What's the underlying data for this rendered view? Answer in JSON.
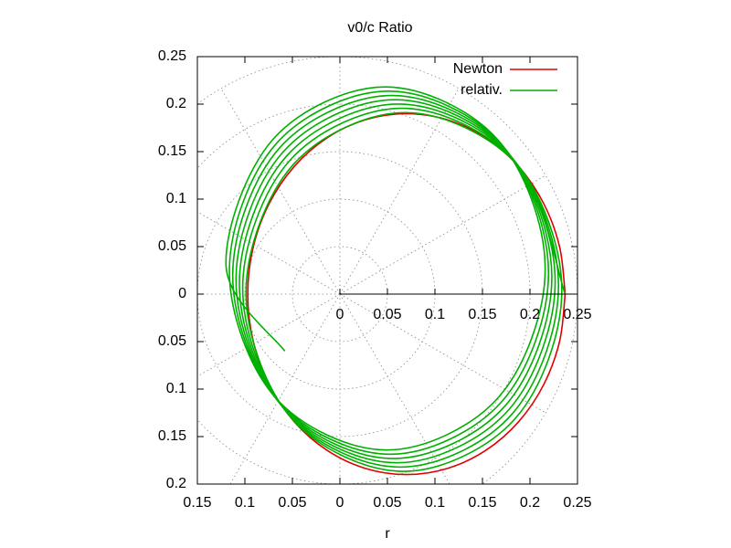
{
  "chart_data": {
    "type": "polar",
    "title": "v0/c Ratio",
    "xlabel": "r",
    "xlim": [
      -0.15,
      0.25
    ],
    "ylim": [
      -0.2,
      0.25
    ],
    "xticks": [
      {
        "value": -0.15,
        "label": "0.15"
      },
      {
        "value": -0.1,
        "label": "0.1"
      },
      {
        "value": -0.05,
        "label": "0.05"
      },
      0,
      0.05,
      0.1,
      0.15,
      0.2,
      0.25
    ],
    "yticks": [
      {
        "value": -0.2,
        "label": "0.2"
      },
      {
        "value": -0.15,
        "label": "0.15"
      },
      {
        "value": -0.1,
        "label": "0.1"
      },
      {
        "value": -0.05,
        "label": "0.05"
      },
      0,
      0.05,
      0.1,
      0.15,
      0.2,
      0.25
    ],
    "rticks": [
      0,
      0.05,
      0.1,
      0.15,
      0.2,
      0.25
    ],
    "polar_grid_degrees": 30,
    "grid": true,
    "legend": "top right",
    "series": [
      {
        "name": "Newton",
        "color": "#e00000",
        "x": [
          0.237,
          0.2313,
          0.2146,
          0.1881,
          0.1535,
          0.1132,
          0.07,
          0.0268,
          -0.0135,
          -0.0481,
          -0.0746,
          -0.0913,
          -0.097,
          -0.0913,
          -0.0746,
          -0.0481,
          -0.0135,
          0.0268,
          0.07,
          0.1132,
          0.1535,
          0.1881,
          0.2146,
          0.2313,
          0.237
        ],
        "y": [
          0,
          0.0492,
          0.095,
          0.1343,
          0.1645,
          0.1835,
          0.19,
          0.1835,
          0.1645,
          0.1343,
          0.095,
          0.0492,
          0,
          -0.0492,
          -0.095,
          -0.1343,
          -0.1645,
          -0.1835,
          -0.19,
          -0.1835,
          -0.1645,
          -0.1343,
          -0.095,
          -0.0492,
          0
        ]
      },
      {
        "name": "relativ.",
        "color": "#00b000",
        "x": [
          0.237,
          0.1877,
          0.0691,
          -0.0494,
          -0.0988,
          -0.0503,
          0.0674,
          0.185,
          0.2335,
          0.1842,
          0.0656,
          -0.0529,
          -0.1023,
          -0.0538,
          0.0639,
          0.1815,
          0.23,
          0.1807,
          0.0621,
          -0.0564,
          -0.1058,
          -0.0573,
          0.0604,
          0.178,
          0.2265,
          0.1772,
          0.0586,
          -0.0599,
          -0.1093,
          -0.0608,
          0.0569,
          0.1745,
          0.223,
          0.1737,
          0.0551,
          -0.0634,
          -0.1128,
          -0.0643,
          0.0534,
          0.171,
          0.2195,
          0.1702,
          0.0516,
          -0.0669,
          -0.1163,
          -0.0678,
          0.0499,
          0.1675,
          0.216,
          0.1667,
          0.0481,
          -0.0704,
          -0.1198,
          -0.058
        ],
        "y": [
          0,
          0.1349,
          0.1911,
          0.136,
          0.0022,
          -0.1315,
          -0.1866,
          -0.1304,
          0.0045,
          0.1394,
          0.1956,
          0.1405,
          0.0067,
          -0.127,
          -0.1821,
          -0.1259,
          0.009,
          0.1439,
          0.2001,
          0.145,
          0.0112,
          -0.1225,
          -0.1776,
          -0.1214,
          0.0135,
          0.1484,
          0.2046,
          0.1495,
          0.0157,
          -0.118,
          -0.1731,
          -0.1169,
          0.018,
          0.1529,
          0.2091,
          0.154,
          0.0202,
          -0.1135,
          -0.1686,
          -0.1124,
          0.0225,
          0.1574,
          0.2136,
          0.1585,
          0.0247,
          -0.109,
          -0.1641,
          -0.1079,
          0.027,
          0.1619,
          0.2181,
          0.163,
          0.0292,
          -0.06
        ]
      }
    ]
  }
}
